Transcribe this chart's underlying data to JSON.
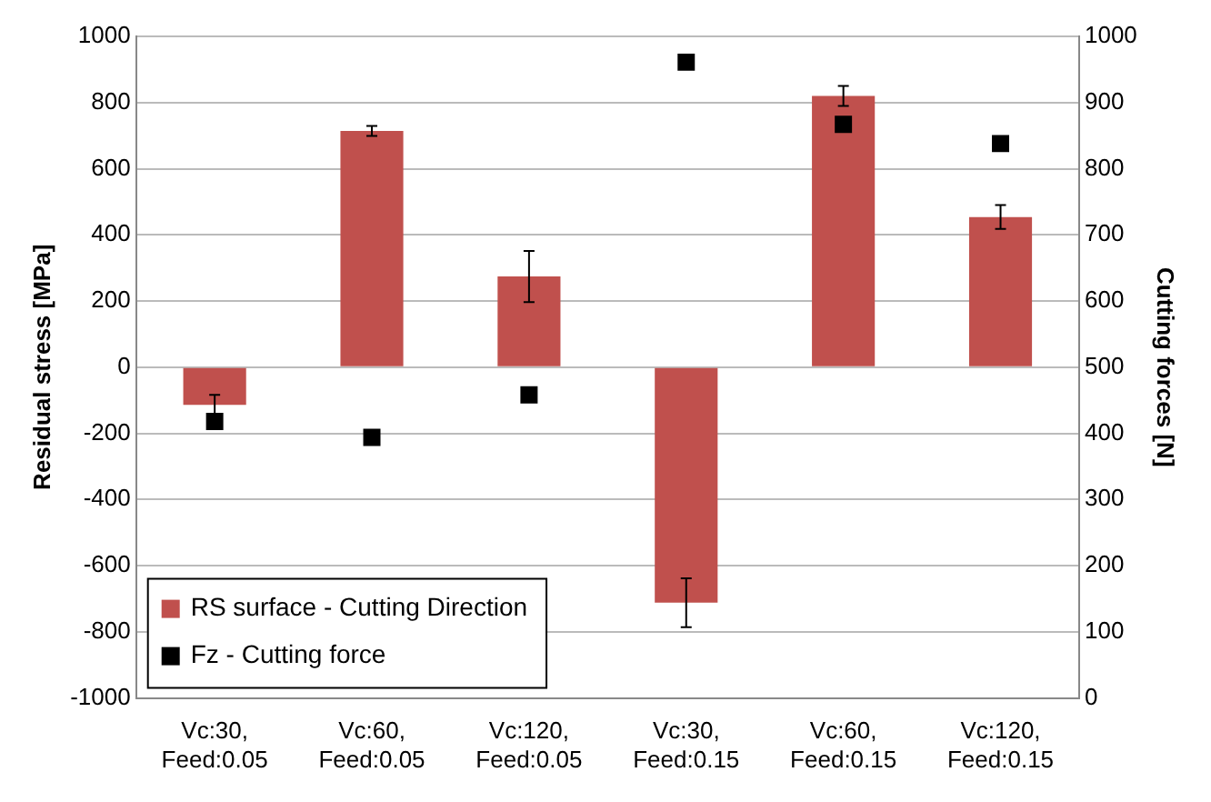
{
  "chart_data": {
    "type": "bar",
    "categories": [
      "Vc:30, Feed:0.05",
      "Vc:60, Feed:0.05",
      "Vc:120, Feed:0.05",
      "Vc:30, Feed:0.15",
      "Vc:60, Feed:0.15",
      "Vc:120, Feed:0.15"
    ],
    "ylabel": "Residual stress [MPa]",
    "y2label": "Cutting forces [N]",
    "series": [
      {
        "name": "RS surface - Cutting Direction",
        "color": "#c0504d",
        "values": [
          -114,
          714,
          274,
          -712,
          820,
          454
        ],
        "errors": [
          30,
          15,
          77,
          74,
          30,
          36
        ]
      },
      {
        "name": "Fz - Cutting force",
        "type": "scatter",
        "axis": "y2",
        "color": "#000000",
        "marker": "square",
        "x": [
          "Vc:30, Feed:0.05",
          "Vc:60, Feed:0.05",
          "Vc:120, Feed:0.05",
          "Vc:30, Feed:0.15",
          "Vc:60, Feed:0.15",
          "Vc:120, Feed:0.15"
        ],
        "values": [
          418,
          394,
          458,
          961,
          867,
          838
        ]
      }
    ],
    "ylim": [
      -1000,
      1000
    ],
    "yticks": [
      -1000,
      -800,
      -600,
      -400,
      -200,
      0,
      200,
      400,
      600,
      800,
      1000
    ],
    "y2lim": [
      0,
      1000
    ],
    "y2ticks": [
      0,
      100,
      200,
      300,
      400,
      500,
      600,
      700,
      800,
      900,
      1000
    ],
    "grid": "y",
    "legend": "bottom left"
  }
}
